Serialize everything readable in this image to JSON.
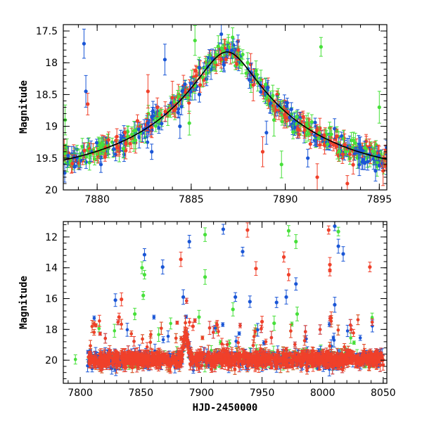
{
  "chart_data": [
    {
      "type": "scatter",
      "panel": "top",
      "xlabel": "",
      "ylabel": "Magnitude",
      "xlim": [
        7878.2,
        7895.4
      ],
      "ylim": [
        20.0,
        17.4
      ],
      "y_inverted": true,
      "x_ticks": [
        7880,
        7885,
        7890,
        7895
      ],
      "y_ticks": [
        17.5,
        18,
        18.5,
        19,
        19.5,
        20
      ],
      "y_tick_labels": [
        "17.5",
        "18",
        "18.5",
        "19",
        "19.5",
        "20"
      ],
      "series": [
        {
          "color": "#1a56d6",
          "marker": "circle-errorbar",
          "points": [
            [
              7879.3,
              17.7
            ],
            [
              7879.4,
              18.45
            ],
            [
              7883.6,
              17.95
            ],
            [
              7886.6,
              17.55
            ],
            [
              7880.2,
              19.6
            ],
            [
              7882.9,
              19.4
            ],
            [
              7884.4,
              19.0
            ],
            [
              7889.0,
              19.1
            ],
            [
              7891.2,
              19.5
            ],
            [
              7893.9,
              19.4
            ],
            [
              7894.8,
              19.7
            ]
          ]
        },
        {
          "color": "#f0402a",
          "marker": "circle-errorbar",
          "points": [
            [
              7879.5,
              18.65
            ],
            [
              7882.7,
              18.45
            ],
            [
              7883.2,
              18.7
            ],
            [
              7884.0,
              18.55
            ],
            [
              7887.5,
              17.8
            ],
            [
              7888.3,
              18.35
            ],
            [
              7888.8,
              19.4
            ],
            [
              7891.7,
              19.8
            ],
            [
              7893.3,
              19.9
            ],
            [
              7895.2,
              19.7
            ]
          ]
        },
        {
          "color": "#47e03a",
          "marker": "circle-errorbar",
          "points": [
            [
              7878.3,
              18.9
            ],
            [
              7885.2,
              17.65
            ],
            [
              7887.2,
              17.6
            ],
            [
              7888.0,
              18.0
            ],
            [
              7889.4,
              18.9
            ],
            [
              7891.9,
              17.75
            ],
            [
              7895.0,
              18.7
            ],
            [
              7881.4,
              19.35
            ],
            [
              7884.9,
              18.95
            ],
            [
              7889.8,
              19.6
            ]
          ]
        }
      ],
      "model_curve": "Paczynski",
      "model_params": {
        "t0": 7886.9,
        "u0": 0.16,
        "tE": 8.5,
        "baseline": 19.83
      }
    },
    {
      "type": "scatter",
      "panel": "bottom",
      "xlabel": "HJD-2450000",
      "ylabel": "Magnitude",
      "xlim": [
        7786,
        8053
      ],
      "ylim": [
        21.5,
        11.0
      ],
      "y_inverted": true,
      "x_ticks": [
        7800,
        7850,
        7900,
        7950,
        8000,
        8050
      ],
      "y_ticks": [
        12,
        14,
        16,
        18,
        20
      ],
      "y_tick_labels": [
        "12",
        "14",
        "16",
        "18",
        "20"
      ],
      "series": [
        {
          "color": "#1a56d6",
          "marker": "circle-errorbar",
          "points": [
            [
              7853,
              13.15
            ],
            [
              7868,
              13.95
            ],
            [
              7885,
              15.9
            ],
            [
              7890,
              12.3
            ],
            [
              7918,
              11.5
            ],
            [
              7928,
              15.9
            ],
            [
              7934,
              12.95
            ],
            [
              7940,
              16.2
            ],
            [
              7962,
              16.25
            ],
            [
              7970,
              15.9
            ],
            [
              7978,
              15.05
            ],
            [
              8010,
              11.3
            ],
            [
              8013,
              12.6
            ],
            [
              8017,
              13.1
            ],
            [
              7829,
              16.1
            ],
            [
              8010,
              16.4
            ]
          ]
        },
        {
          "color": "#f0402a",
          "marker": "circle-errorbar",
          "points": [
            [
              7834,
              16.05
            ],
            [
              7832,
              17.2
            ],
            [
              7883,
              13.45
            ],
            [
              7938,
              11.55
            ],
            [
              7945,
              14.05
            ],
            [
              7968,
              13.3
            ],
            [
              7972,
              14.45
            ],
            [
              8005,
              11.55
            ],
            [
              8006,
              13.8
            ],
            [
              8006,
              14.15
            ],
            [
              8039,
              13.95
            ],
            [
              7893,
              17.8
            ],
            [
              7950,
              17.5
            ]
          ]
        },
        {
          "color": "#47e03a",
          "marker": "circle-errorbar",
          "points": [
            [
              7851,
              14.0
            ],
            [
              7853,
              14.45
            ],
            [
              7852,
              15.8
            ],
            [
              7903,
              11.85
            ],
            [
              7903,
              14.6
            ],
            [
              7972,
              11.6
            ],
            [
              7978,
              12.3
            ],
            [
              8013,
              11.65
            ],
            [
              7898,
              17.2
            ],
            [
              7926,
              16.7
            ],
            [
              7979,
              17.0
            ],
            [
              7960,
              17.6
            ],
            [
              7845,
              17.0
            ]
          ]
        }
      ],
      "baseline_mag": 19.95,
      "baseline_x_range": [
        7806,
        8050
      ],
      "event_peak": [
        7887,
        18.1
      ]
    }
  ]
}
